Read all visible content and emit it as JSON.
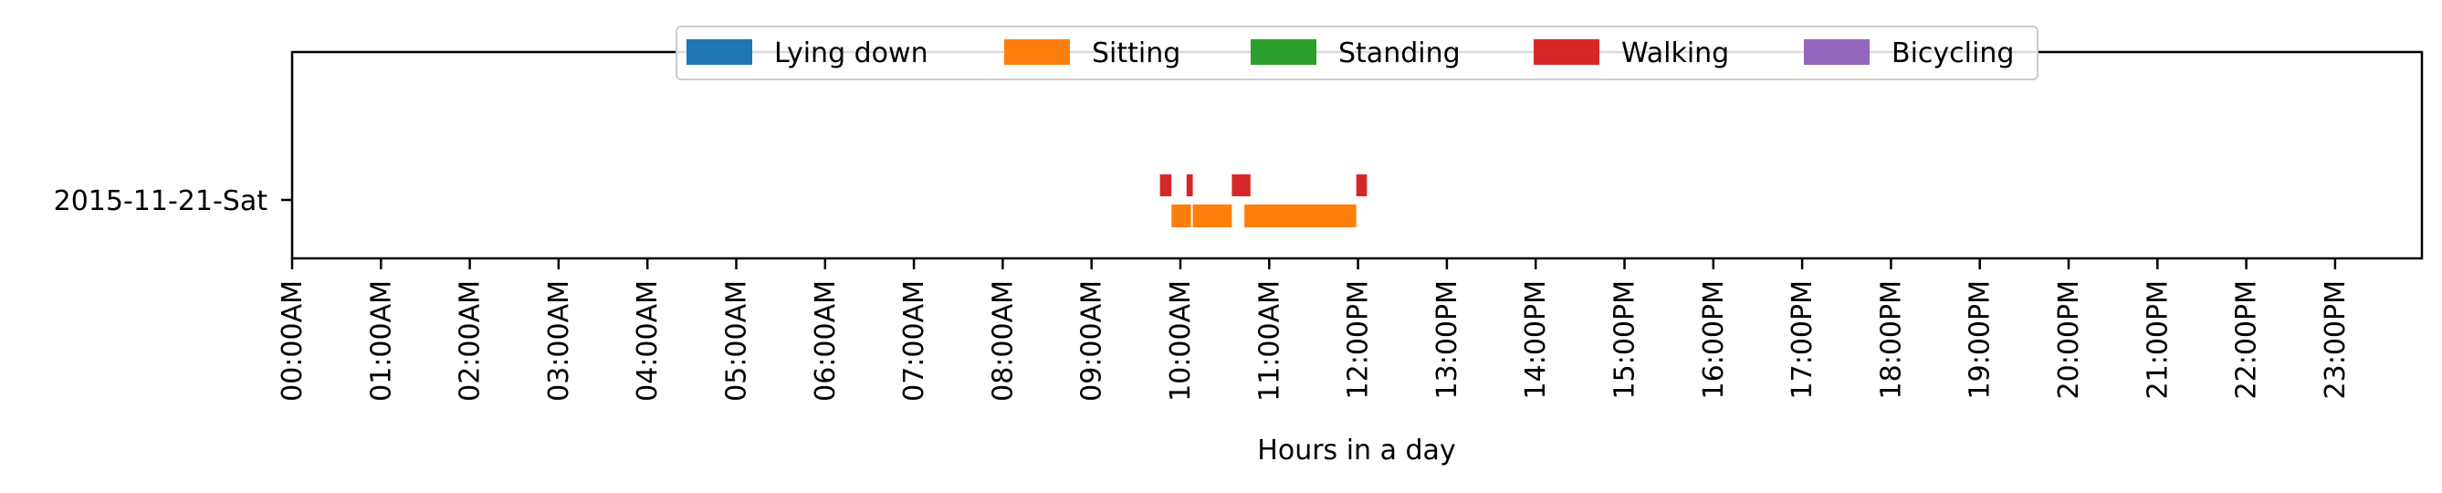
{
  "chart_data": {
    "type": "timeline",
    "xlabel": "Hours in a day",
    "ylabel": "",
    "xlim": [
      0,
      24
    ],
    "x_ticks": [
      "00:00AM",
      "01:00AM",
      "02:00AM",
      "03:00AM",
      "04:00AM",
      "05:00AM",
      "06:00AM",
      "07:00AM",
      "08:00AM",
      "09:00AM",
      "10:00AM",
      "11:00AM",
      "12:00PM",
      "13:00PM",
      "14:00PM",
      "15:00PM",
      "16:00PM",
      "17:00PM",
      "18:00PM",
      "19:00PM",
      "20:00PM",
      "21:00PM",
      "22:00PM",
      "23:00PM"
    ],
    "y_categories": [
      "2015-11-21-Sat"
    ],
    "legend_position": "top-center",
    "grid": false,
    "series": [
      {
        "name": "Lying down",
        "color": "#1f77b4",
        "intervals": []
      },
      {
        "name": "Sitting",
        "color": "#ff7f0e",
        "intervals": [
          [
            9.9,
            10.12
          ],
          [
            10.14,
            10.58
          ],
          [
            10.72,
            11.98
          ]
        ]
      },
      {
        "name": "Standing",
        "color": "#2ca02c",
        "intervals": []
      },
      {
        "name": "Walking",
        "color": "#d62728",
        "intervals": [
          [
            9.77,
            9.9
          ],
          [
            10.07,
            10.14
          ],
          [
            10.58,
            10.79
          ],
          [
            11.98,
            12.1
          ]
        ]
      },
      {
        "name": "Bicycling",
        "color": "#9467bd",
        "intervals": []
      }
    ]
  }
}
